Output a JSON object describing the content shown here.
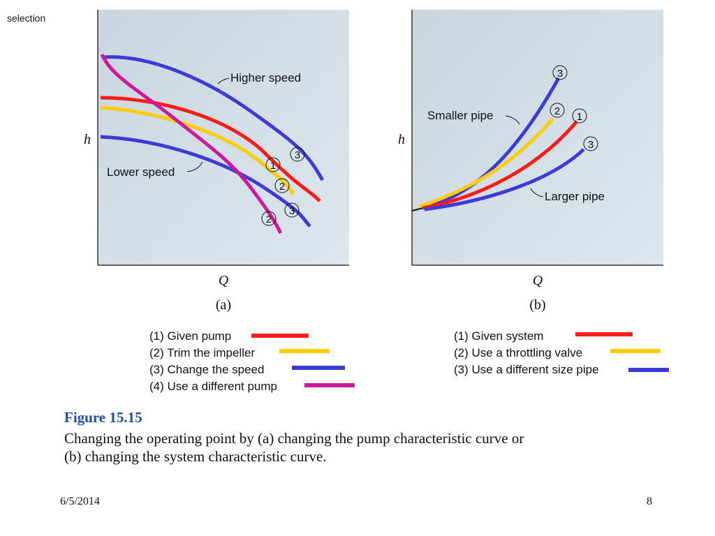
{
  "header": {
    "label": "selection"
  },
  "panel_a": {
    "y_axis": "h",
    "x_axis": "Q",
    "panel_label": "(a)",
    "annotations": {
      "higher": "Higher speed",
      "lower": "Lower speed"
    },
    "markers": [
      "1",
      "2",
      "3",
      "3",
      "2"
    ]
  },
  "panel_b": {
    "y_axis": "h",
    "x_axis": "Q",
    "panel_label": "(b)",
    "annotations": {
      "smaller": "Smaller pipe",
      "larger": "Larger pipe"
    },
    "markers": [
      "3",
      "2",
      "1",
      "3"
    ]
  },
  "legend_a": [
    {
      "label": "(1) Given pump",
      "color": "#ff1a1a"
    },
    {
      "label": "(2) Trim the impeller",
      "color": "#ffcc00"
    },
    {
      "label": "(3) Change the speed",
      "color": "#3b3bd6"
    },
    {
      "label": "(4) Use a different pump",
      "color": "#cc1a99"
    }
  ],
  "legend_b": [
    {
      "label": "(1) Given system",
      "color": "#ff1a1a"
    },
    {
      "label": "(2) Use a throttling valve",
      "color": "#ffcc00"
    },
    {
      "label": "(3) Use a different size pipe",
      "color": "#3b3bd6"
    }
  ],
  "figure": {
    "title": "Figure 15.15",
    "caption_line1": "Changing the operating point by (a) changing the pump characteristic curve or",
    "caption_line2": "(b) changing the system characteristic curve."
  },
  "footer": {
    "date": "6/5/2014",
    "page": "8"
  }
}
